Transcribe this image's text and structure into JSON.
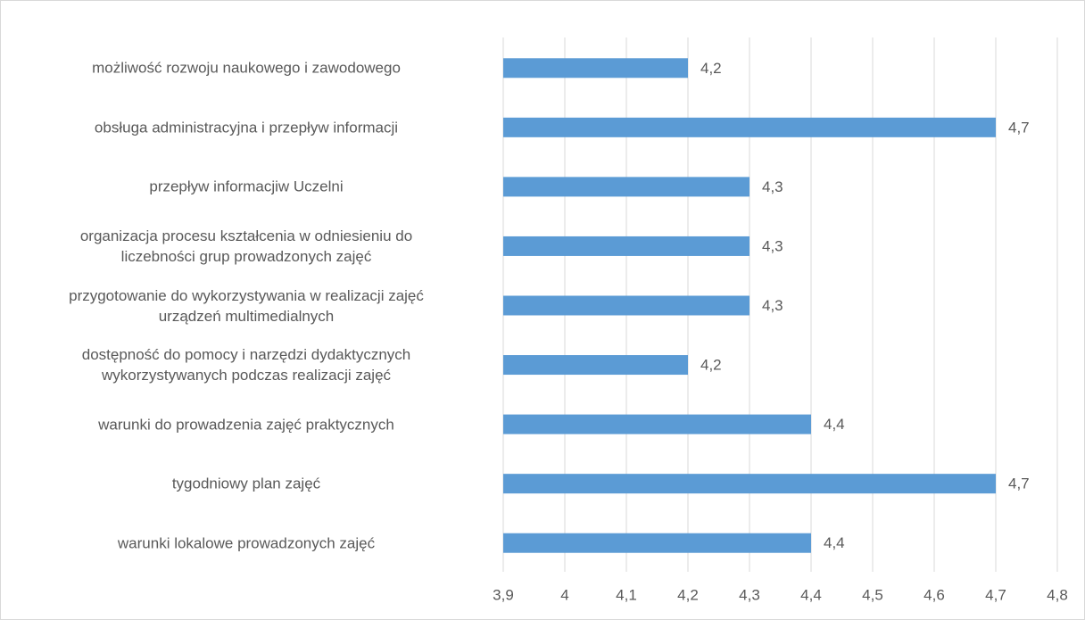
{
  "chart_data": {
    "type": "bar",
    "orientation": "horizontal",
    "categories": [
      "możliwość rozwoju naukowego i zawodowego",
      "obsługa administracyjna i przepływ informacji",
      "przepływ informacjiw Uczelni",
      "organizacja procesu kształcenia w odniesieniu do\nliczebności grup prowadzonych zajęć",
      "przygotowanie do wykorzystywania w realizacji zajęć\nurządzeń multimedialnych",
      "dostępność do pomocy i narzędzi dydaktycznych\nwykorzystywanych podczas realizacji zajęć",
      "warunki do prowadzenia zajęć praktycznych",
      "tygodniowy plan zajęć",
      "warunki lokalowe prowadzonych zajęć"
    ],
    "values": [
      4.2,
      4.7,
      4.3,
      4.3,
      4.3,
      4.2,
      4.4,
      4.7,
      4.4
    ],
    "value_labels": [
      "4,2",
      "4,7",
      "4,3",
      "4,3",
      "4,3",
      "4,2",
      "4,4",
      "4,7",
      "4,4"
    ],
    "color": "#5b9bd5",
    "xlim": [
      3.9,
      4.8
    ],
    "xticks": [
      {
        "value": 3.9,
        "label": "3,9"
      },
      4,
      {
        "value": 4.1,
        "label": "4,1"
      },
      {
        "value": 4.2,
        "label": "4,2"
      },
      {
        "value": 4.3,
        "label": "4,3"
      },
      {
        "value": 4.4,
        "label": "4,4"
      },
      {
        "value": 4.5,
        "label": "4,5"
      },
      {
        "value": 4.6,
        "label": "4,6"
      },
      {
        "value": 4.7,
        "label": "4,7"
      },
      {
        "value": 4.8,
        "label": "4,8"
      }
    ],
    "grid": true
  }
}
